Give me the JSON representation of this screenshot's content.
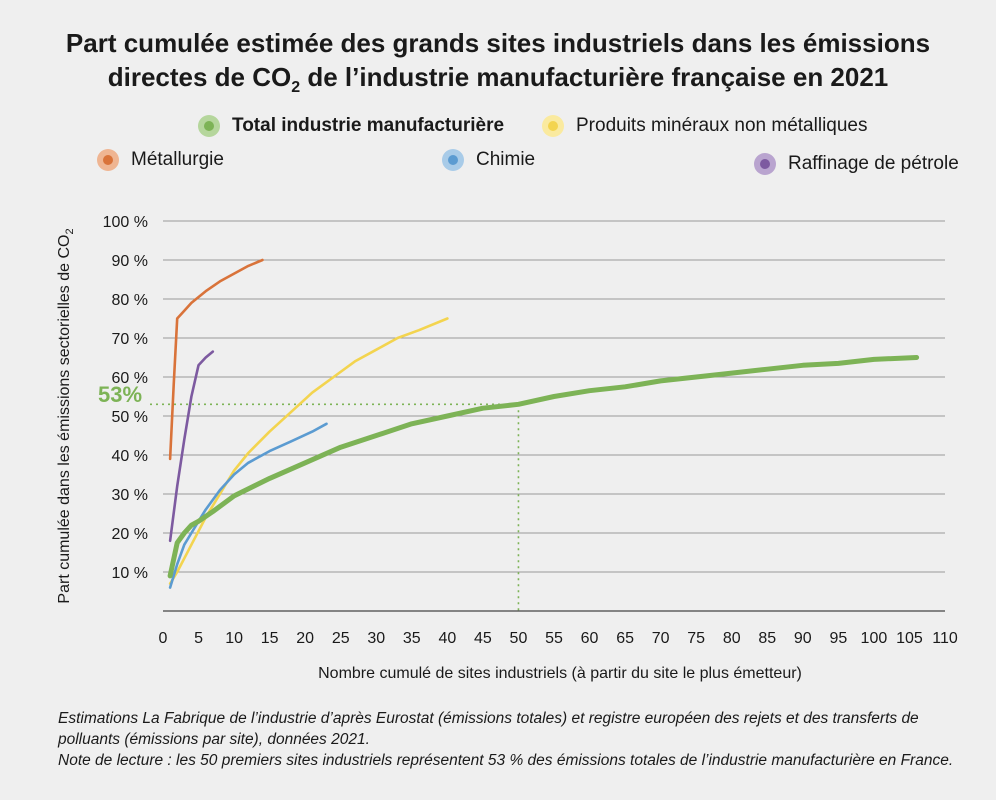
{
  "title": {
    "line1": "Part cumulée estimée des grands sites industriels dans les émissions",
    "line2_pre": "directes de CO",
    "line2_sub": "2",
    "line2_post": " de l’industrie manufacturière française en 2021"
  },
  "footnote": {
    "line1": "Estimations La Fabrique de l’industrie d’après Eurostat (émissions totales) et registre européen des rejets et des transferts de polluants (émissions par site), données 2021.",
    "line2": "Note de lecture : les 50 premiers sites industriels représentent 53 % des émissions totales de l’industrie manufacturière en France."
  },
  "chart_data": {
    "type": "line",
    "xlabel": "Nombre cumulé de sites industriels (à partir du site le plus émetteur)",
    "ylabel_pre": "Part cumulée dans les émissions sectorielles de CO",
    "ylabel_sub": "2",
    "xlim": [
      0,
      110
    ],
    "ylim": [
      0,
      100
    ],
    "x_ticks": [
      0,
      5,
      10,
      15,
      20,
      25,
      30,
      35,
      40,
      45,
      50,
      55,
      60,
      65,
      70,
      75,
      80,
      85,
      90,
      95,
      100,
      105,
      110
    ],
    "y_ticks": [
      10,
      20,
      30,
      40,
      50,
      60,
      70,
      80,
      90,
      100
    ],
    "y_tick_labels": [
      "10 %",
      "20 %",
      "30 %",
      "40 %",
      "50 %",
      "60 %",
      "70 %",
      "80 %",
      "90 %",
      "100 %"
    ],
    "grid": "horizontal",
    "annotation": {
      "label": "53%",
      "x": 50,
      "y": 53,
      "color": "#7db356"
    },
    "series": [
      {
        "name": "Total industrie manufacturière",
        "color": "#7db356",
        "bold": true,
        "x": [
          1,
          2,
          3,
          4,
          5,
          7,
          10,
          15,
          20,
          25,
          30,
          35,
          40,
          45,
          50,
          55,
          60,
          65,
          70,
          75,
          80,
          85,
          90,
          95,
          100,
          106
        ],
        "y": [
          9,
          17.5,
          20,
          22,
          23,
          25.5,
          29.5,
          34,
          38,
          42,
          45,
          48,
          50,
          52,
          53,
          55,
          56.5,
          57.5,
          59,
          60,
          61,
          62,
          63,
          63.5,
          64.5,
          65
        ]
      },
      {
        "name": "Produits minéraux non métalliques",
        "color": "#f3d44f",
        "x": [
          1,
          2,
          4,
          6,
          8,
          10,
          12,
          15,
          18,
          21,
          24,
          27,
          30,
          33,
          36,
          40
        ],
        "y": [
          7,
          10,
          17,
          24,
          30,
          36,
          40.5,
          46,
          51,
          56,
          60,
          64,
          67,
          70,
          72,
          75
        ]
      },
      {
        "name": "Métallurgie",
        "color": "#d9733a",
        "x": [
          1,
          1.5,
          2,
          3,
          4,
          6,
          8,
          10,
          12,
          14
        ],
        "y": [
          39,
          58,
          75,
          77,
          79,
          82,
          84.5,
          86.5,
          88.5,
          90
        ]
      },
      {
        "name": "Chimie",
        "color": "#5b9bd1",
        "x": [
          1,
          2,
          3,
          4,
          5,
          6,
          8,
          10,
          12,
          15,
          18,
          21,
          23
        ],
        "y": [
          6,
          12,
          17,
          20,
          23,
          26,
          31,
          35,
          38,
          41,
          43.5,
          46,
          48
        ]
      },
      {
        "name": "Raffinage de pétrole",
        "color": "#7d5aa0",
        "x": [
          1,
          2,
          3,
          4,
          5,
          6,
          7
        ],
        "y": [
          18,
          32,
          44,
          55,
          63,
          65,
          66.5
        ]
      }
    ]
  }
}
